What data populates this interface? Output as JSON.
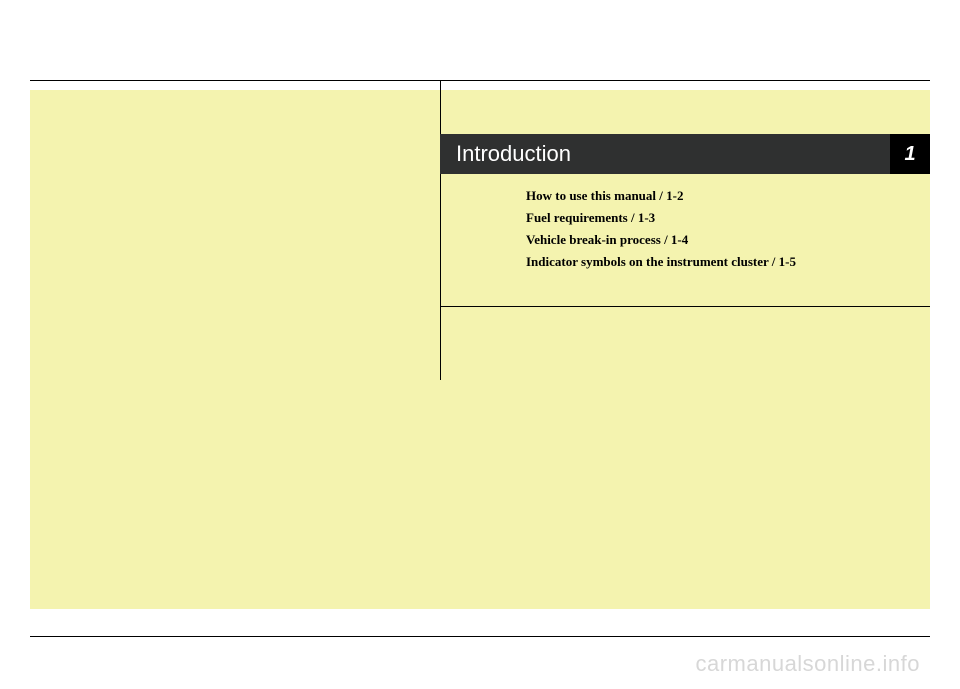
{
  "chapter": {
    "title": "Introduction",
    "number": "1"
  },
  "toc": {
    "items": [
      {
        "label": "How to use this manual / 1-2"
      },
      {
        "label": "Fuel requirements / 1-3"
      },
      {
        "label": "Vehicle break-in process / 1-4"
      },
      {
        "label": "Indicator symbols on the instrument cluster / 1-5"
      }
    ]
  },
  "watermark": "carmanualsonline.info",
  "colors": {
    "yellow_panel": "#f4f3af",
    "header_bg": "#2f3030",
    "number_bg": "#000000",
    "text": "#000000",
    "watermark": "#d7d7d7"
  }
}
